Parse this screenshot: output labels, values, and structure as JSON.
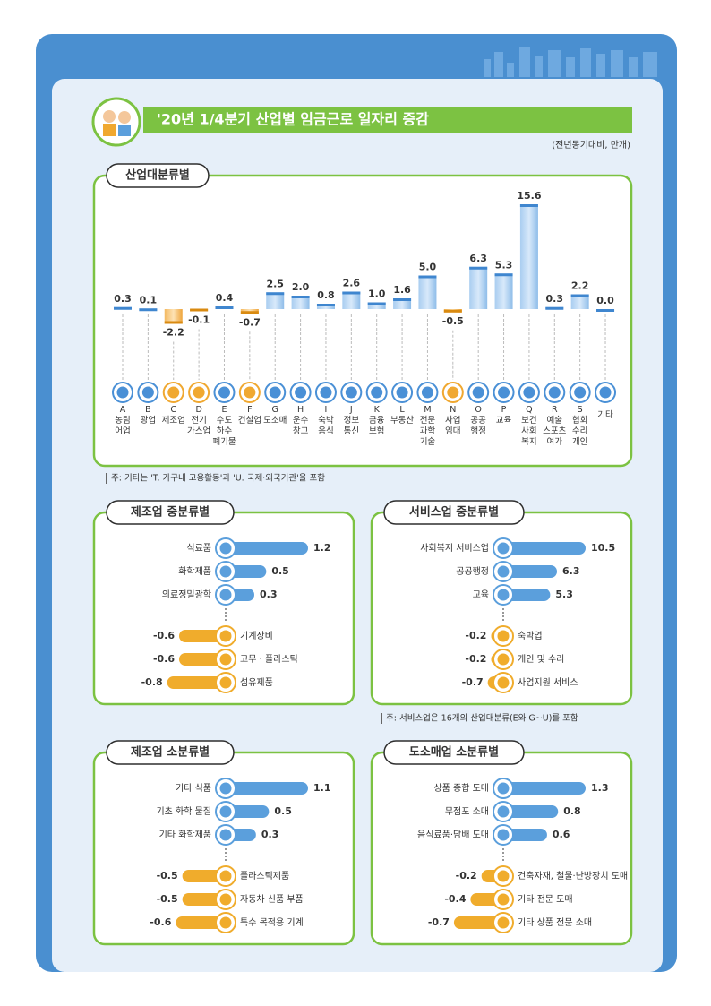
{
  "title": "'20년 1/4분기 산업별 임금근로 일자리 증감",
  "unit": "(전년동기대비, 만개)",
  "chart_data": [
    {
      "type": "bar",
      "title": "산업대분류별",
      "codes": [
        "A",
        "B",
        "C",
        "D",
        "E",
        "F",
        "G",
        "H",
        "I",
        "J",
        "K",
        "L",
        "M",
        "N",
        "O",
        "P",
        "Q",
        "R",
        "S",
        null
      ],
      "categories": [
        "농림\n어업",
        "광업",
        "제조업",
        "전기\n가스업",
        "수도\n하수\n폐기물",
        "건설업",
        "도소매",
        "운수\n창고",
        "숙박\n음식",
        "정보\n통신",
        "금융\n보험",
        "부동산",
        "전문\n과학\n기술",
        "사업\n임대",
        "공공\n행정",
        "교육",
        "보건\n사회\n복지",
        "예술\n스포츠\n여가",
        "협회\n수리\n개인",
        "기타"
      ],
      "values": [
        0.3,
        0.1,
        -2.2,
        -0.1,
        0.4,
        -0.7,
        2.5,
        2.0,
        0.8,
        2.6,
        1.0,
        1.6,
        5.0,
        -0.5,
        6.3,
        5.3,
        15.6,
        0.3,
        2.2,
        0.0
      ],
      "value_labels": [
        "0.3",
        "0.1",
        "-2.2",
        "-0.1",
        "0.4",
        "-0.7",
        "2.5",
        "2.0",
        "0.8",
        "2.6",
        "1.0",
        "1.6",
        "5.0",
        "-0.5",
        "6.3",
        "5.3",
        "15.6",
        "0.3",
        "2.2",
        "0.0"
      ],
      "color": "#7fb3e6",
      "negative_color": "#f0a830",
      "note": "주: 기타는 'T. 가구내 고용활동'과 'U. 국제·외국기관'을 포함"
    },
    {
      "type": "hbar",
      "title": "제조업 중분류별",
      "categories": [
        "식료품",
        "화학제품",
        "의료정밀광학",
        "기계장비",
        "고무 · 플라스틱",
        "섬유제품"
      ],
      "values": [
        1.2,
        0.5,
        0.3,
        -0.6,
        -0.6,
        -0.8
      ],
      "color": "#5b9fdc",
      "negative_color": "#f0ac2c"
    },
    {
      "type": "hbar",
      "title": "서비스업 중분류별",
      "categories": [
        "사회복지 서비스업",
        "공공행정",
        "교육",
        "숙박업",
        "개인 및 수리",
        "사업지원 서비스"
      ],
      "values": [
        10.5,
        6.3,
        5.3,
        -0.2,
        -0.2,
        -0.7
      ],
      "color": "#5b9fdc",
      "negative_color": "#f0ac2c",
      "note": "주: 서비스업은 16개의 산업대분류(E와 G~U)를 포함"
    },
    {
      "type": "hbar",
      "title": "제조업 소분류별",
      "categories": [
        "기타 식품",
        "기초 화학 물질",
        "기타 화학제품",
        "플라스틱제품",
        "자동차 신품 부품",
        "특수 목적용 기계"
      ],
      "values": [
        1.1,
        0.5,
        0.3,
        -0.5,
        -0.5,
        -0.6
      ],
      "color": "#5b9fdc",
      "negative_color": "#f0ac2c"
    },
    {
      "type": "hbar",
      "title": "도소매업 소분류별",
      "categories": [
        "상품 종합 도매",
        "무점포 소매",
        "음식료품·담배 도매",
        "건축자재, 철물·난방장치 도매",
        "기타 전문 도매",
        "기타 상품 전문 소매"
      ],
      "values": [
        1.3,
        0.8,
        0.6,
        -0.2,
        -0.4,
        -0.7
      ],
      "color": "#5b9fdc",
      "negative_color": "#f0ac2c"
    }
  ]
}
